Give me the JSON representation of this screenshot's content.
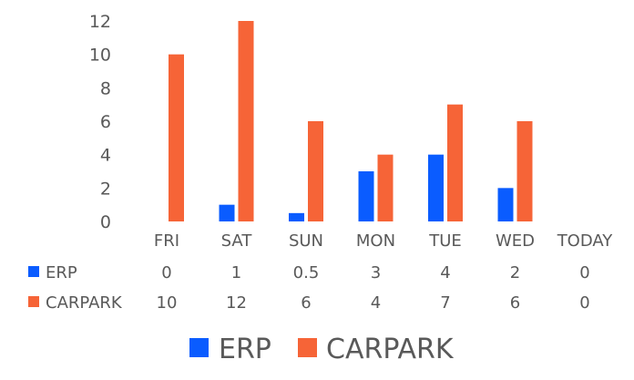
{
  "chart_data": {
    "type": "bar",
    "categories": [
      "FRI",
      "SAT",
      "SUN",
      "MON",
      "TUE",
      "WED",
      "TODAY"
    ],
    "series": [
      {
        "name": "ERP",
        "color": "#0a5cff",
        "values": [
          0,
          1,
          0.5,
          3,
          4,
          2,
          0
        ]
      },
      {
        "name": "CARPARK",
        "color": "#f66437",
        "values": [
          10,
          12,
          6,
          4,
          7,
          6,
          0
        ]
      }
    ],
    "y_ticks": [
      "0",
      "2",
      "4",
      "6",
      "8",
      "10",
      "12"
    ],
    "ylim": [
      0,
      12
    ],
    "grid": false,
    "data_table": {
      "rows": [
        {
          "series": "ERP",
          "cells": [
            "0",
            "1",
            "0.5",
            "3",
            "4",
            "2",
            "0"
          ]
        },
        {
          "series": "CARPARK",
          "cells": [
            "10",
            "12",
            "6",
            "4",
            "7",
            "6",
            "0"
          ]
        }
      ]
    },
    "legend_placement": "bottom"
  }
}
